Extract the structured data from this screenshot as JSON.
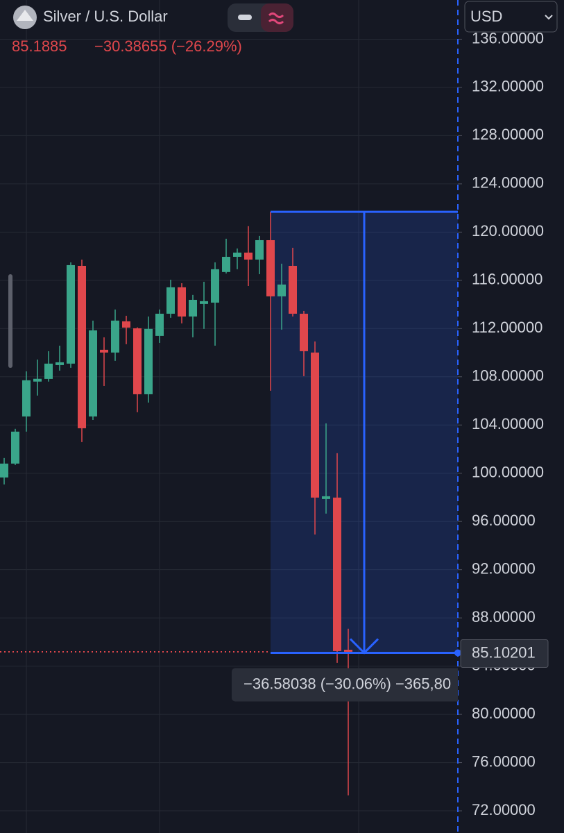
{
  "header": {
    "title": "Silver / U.S. Dollar",
    "last": 85.1885,
    "change": "−30.38655 (−26.29%)",
    "currency": "USD"
  },
  "chart_data": {
    "type": "candlestick",
    "up_color": "#3aa58a",
    "down_color": "#e0474c",
    "open": [
      99.65,
      100.8,
      104.71,
      107.6,
      107.82,
      108.97,
      109.09,
      117.2,
      104.71,
      110.24,
      110.01,
      112.6,
      112.02,
      106.55,
      111.39,
      113.23,
      115.42,
      113.0,
      114.04,
      114.15,
      116.69,
      117.95,
      118.3,
      117.72,
      119.33,
      114.67,
      117.2,
      113.23,
      110.01,
      97.86,
      97.98,
      85.36
    ],
    "high": [
      101.26,
      103.68,
      108.45,
      109.43,
      110.12,
      110.58,
      117.49,
      117.72,
      112.66,
      111.27,
      113.58,
      113.06,
      112.1,
      113.0,
      113.58,
      116.05,
      115.76,
      114.79,
      115.88,
      117.49,
      119.45,
      118.64,
      120.49,
      119.68,
      121.69,
      117.38,
      118.7,
      113.46,
      110.93,
      104.14,
      101.66,
      87.1
    ],
    "low": [
      99.07,
      100.68,
      103.45,
      106.44,
      107.6,
      108.51,
      108.74,
      102.58,
      104.42,
      107.24,
      109.32,
      110.7,
      105.06,
      105.86,
      110.81,
      112.89,
      112.43,
      111.27,
      111.97,
      110.58,
      116.57,
      116.92,
      115.53,
      116.51,
      106.84,
      111.91,
      113.0,
      108.05,
      94.92,
      96.65,
      84.27,
      73.28
    ],
    "close": [
      100.8,
      103.45,
      107.71,
      107.83,
      109.09,
      109.2,
      117.26,
      103.73,
      111.85,
      110.01,
      112.66,
      112.08,
      106.55,
      111.97,
      113.23,
      115.42,
      113.0,
      114.38,
      114.27,
      116.92,
      117.95,
      118.3,
      117.72,
      119.33,
      114.67,
      115.65,
      113.23,
      110.12,
      97.98,
      98.09,
      85.25,
      85.19
    ],
    "ylim": [
      70.16,
      139.25
    ],
    "yticks": [
      {
        "value": 72,
        "label": "72.00000"
      },
      {
        "value": 76,
        "label": "76.00000"
      },
      {
        "value": 80,
        "label": "80.00000"
      },
      {
        "value": 84,
        "label": "84.00000"
      },
      {
        "value": 88,
        "label": "88.00000"
      },
      {
        "value": 92,
        "label": "92.00000"
      },
      {
        "value": 96,
        "label": "96.00000"
      },
      {
        "value": 100,
        "label": "100.00000"
      },
      {
        "value": 104,
        "label": "104.00000"
      },
      {
        "value": 108,
        "label": "108.00000"
      },
      {
        "value": 112,
        "label": "112.00000"
      },
      {
        "value": 116,
        "label": "116.00000"
      },
      {
        "value": 120,
        "label": "120.00000"
      },
      {
        "value": 124,
        "label": "124.00000"
      },
      {
        "value": 128,
        "label": "128.00000"
      },
      {
        "value": 132,
        "label": "132.00000"
      },
      {
        "value": 136,
        "label": "136.00000"
      }
    ],
    "grid": true,
    "measure": {
      "from": 121.68239,
      "to": {
        "value": 85.10201,
        "label": "85.10201"
      },
      "label": "−36.58038 (−30.06%) −365,80",
      "color": "#2962ff"
    }
  }
}
